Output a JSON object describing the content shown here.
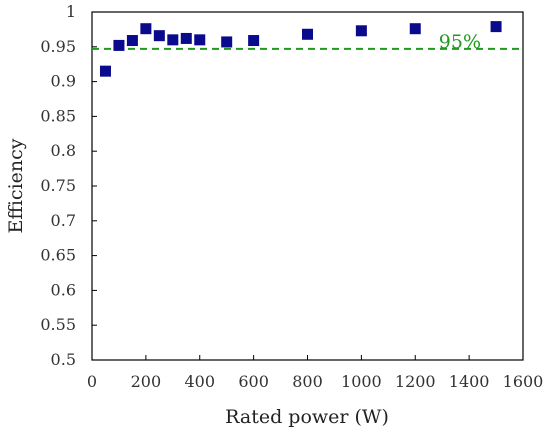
{
  "chart_data": {
    "type": "scatter",
    "xlabel": "Rated power (W)",
    "ylabel": "Efficiency",
    "xlim": [
      0,
      1600
    ],
    "ylim": [
      0.5,
      1
    ],
    "x_ticks": [
      0,
      200,
      400,
      600,
      800,
      1000,
      1200,
      1400,
      1600
    ],
    "y_ticks": [
      0.5,
      0.55,
      0.6,
      0.65,
      0.7,
      0.75,
      0.8,
      0.85,
      0.9,
      0.95,
      1
    ],
    "x_tick_labels": [
      "0",
      "200",
      "400",
      "600",
      "800",
      "1000",
      "1200",
      "1400",
      "1600"
    ],
    "y_tick_labels": [
      "0.5",
      "0.55",
      "0.6",
      "0.65",
      "0.7",
      "0.75",
      "0.8",
      "0.85",
      "0.9",
      "0.95",
      "1"
    ],
    "grid": false,
    "legend": "none",
    "marker": "square",
    "marker_color": "#0a0a8c",
    "series": [
      {
        "x": [
          50,
          100,
          150,
          200,
          250,
          300,
          350,
          400,
          500,
          600,
          800,
          1000,
          1200,
          1500
        ],
        "y": [
          0.915,
          0.952,
          0.959,
          0.976,
          0.966,
          0.96,
          0.962,
          0.96,
          0.957,
          0.959,
          0.968,
          0.973,
          0.976,
          0.979
        ]
      }
    ],
    "reference_line": {
      "y": 0.947,
      "label": "95%",
      "color": "#1f9a1f",
      "style": "dashed"
    }
  }
}
